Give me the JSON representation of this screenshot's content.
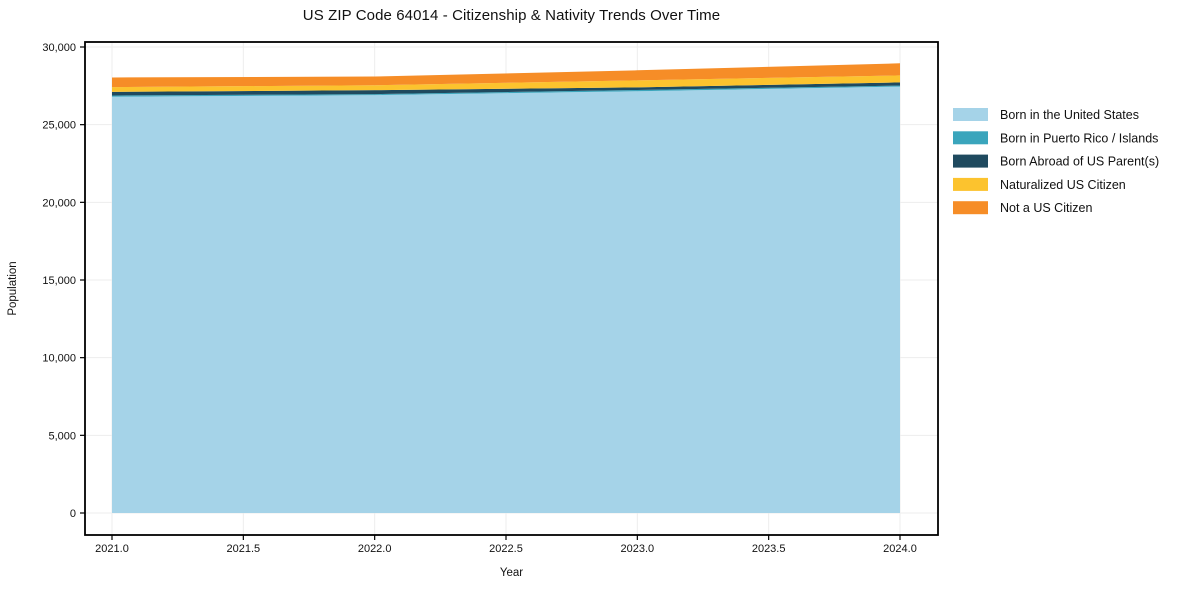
{
  "page": {
    "background": "#ffffff"
  },
  "chart_data": {
    "type": "area",
    "stacked": true,
    "title": "US ZIP Code 64014 - Citizenship & Nativity Trends Over Time",
    "xlabel": "Year",
    "ylabel": "Population",
    "x": [
      2021,
      2022,
      2023,
      2024
    ],
    "series": [
      {
        "name": "Born in the United States",
        "color": "#A5D3E8",
        "values": [
          26800,
          26900,
          27150,
          27450
        ]
      },
      {
        "name": "Born in Puerto Rico / Islands",
        "color": "#3AA5BC",
        "values": [
          80,
          70,
          80,
          70
        ]
      },
      {
        "name": "Born Abroad of US Parent(s)",
        "color": "#1F4A5F",
        "values": [
          230,
          250,
          170,
          200
        ]
      },
      {
        "name": "Naturalized US Citizen",
        "color": "#FCC32E",
        "values": [
          310,
          320,
          450,
          450
        ]
      },
      {
        "name": "Not a US Citizen",
        "color": "#F68D27",
        "values": [
          620,
          560,
          650,
          780
        ]
      }
    ],
    "totals": [
      28040,
      28100,
      28500,
      28950
    ],
    "xticks": [
      {
        "value": 2021.0,
        "label": "2021.0"
      },
      {
        "value": 2021.5,
        "label": "2021.5"
      },
      {
        "value": 2022.0,
        "label": "2022.0"
      },
      {
        "value": 2022.5,
        "label": "2022.5"
      },
      {
        "value": 2023.0,
        "label": "2023.0"
      },
      {
        "value": 2023.5,
        "label": "2023.5"
      },
      {
        "value": 2024.0,
        "label": "2024.0"
      }
    ],
    "yticks": [
      {
        "value": 0,
        "label": "0"
      },
      {
        "value": 5000,
        "label": "5,000"
      },
      {
        "value": 10000,
        "label": "10,000"
      },
      {
        "value": 15000,
        "label": "15,000"
      },
      {
        "value": 20000,
        "label": "20,000"
      },
      {
        "value": 25000,
        "label": "25,000"
      },
      {
        "value": 30000,
        "label": "30,000"
      }
    ],
    "xlim": [
      2020.9,
      2024.15
    ],
    "ylim": [
      -1420,
      30320
    ],
    "grid": true,
    "grid_color": "#EDEDED",
    "frame_color": "#000000",
    "text_color": "#111111",
    "legend_position": "right-outside",
    "legend_frame": false
  }
}
